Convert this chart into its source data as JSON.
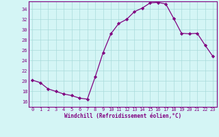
{
  "x": [
    0,
    1,
    2,
    3,
    4,
    5,
    6,
    7,
    8,
    9,
    10,
    11,
    12,
    13,
    14,
    15,
    16,
    17,
    18,
    19,
    20,
    21,
    22,
    23
  ],
  "y": [
    20.2,
    19.7,
    18.5,
    18.0,
    17.5,
    17.2,
    16.7,
    16.5,
    20.8,
    25.5,
    29.2,
    31.2,
    32.0,
    33.5,
    34.2,
    35.2,
    35.3,
    35.0,
    32.2,
    29.3,
    29.2,
    29.3,
    27.0,
    24.8
  ],
  "line_color": "#800080",
  "marker": "D",
  "marker_size": 2.2,
  "bg_color": "#d4f5f5",
  "grid_color": "#a8dada",
  "xlabel": "Windchill (Refroidissement éolien,°C)",
  "xlim": [
    -0.5,
    23.5
  ],
  "ylim": [
    15.0,
    35.5
  ],
  "yticks": [
    16,
    18,
    20,
    22,
    24,
    26,
    28,
    30,
    32,
    34
  ],
  "xticks": [
    0,
    1,
    2,
    3,
    4,
    5,
    6,
    7,
    8,
    9,
    10,
    11,
    12,
    13,
    14,
    15,
    16,
    17,
    18,
    19,
    20,
    21,
    22,
    23
  ],
  "tick_color": "#800080",
  "label_color": "#800080",
  "border_color": "#800080",
  "tick_fontsize": 5.0,
  "xlabel_fontsize": 5.5
}
